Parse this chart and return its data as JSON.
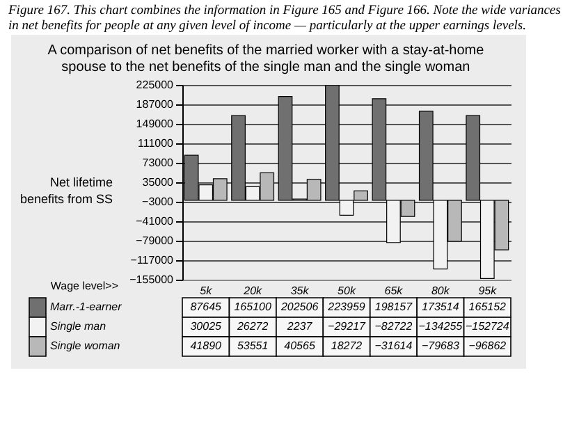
{
  "chart_data": {
    "type": "bar",
    "title": "A comparison of net benefits of the married worker with a stay-at-home spouse to the net benefits of the single man and the single woman",
    "ylabel": "Net lifetime benefits from SS",
    "xlabel": "Wage level>>",
    "annotations": [
      "Figure 167. This chart combines the information in Figure 165 and Figure 166. Note the wide variances in net benefits for people at any given level of income — particularly at the upper earnings levels."
    ],
    "categories": [
      "5k",
      "20k",
      "35k",
      "50k",
      "65k",
      "80k",
      "95k"
    ],
    "series": [
      {
        "name": "Marr.-1-earner",
        "color": "#707070",
        "values": [
          87645,
          165100,
          202506,
          223959,
          198157,
          173514,
          165152
        ]
      },
      {
        "name": "Single man",
        "color": "#f2f2f2",
        "values": [
          30025,
          26272,
          2237,
          -29217,
          -82722,
          -134255,
          -152724
        ]
      },
      {
        "name": "Single woman",
        "color": "#b8b8b8",
        "values": [
          41890,
          53551,
          40565,
          18272,
          -31614,
          -79683,
          -96862
        ]
      }
    ],
    "ylim": [
      -155000,
      225000
    ],
    "yticks": [
      225000,
      187000,
      149000,
      111000,
      73000,
      35000,
      -3000,
      -41000,
      -79000,
      -117000,
      -155000
    ],
    "grid": "y",
    "legend": "bottom",
    "data_labels": true
  }
}
